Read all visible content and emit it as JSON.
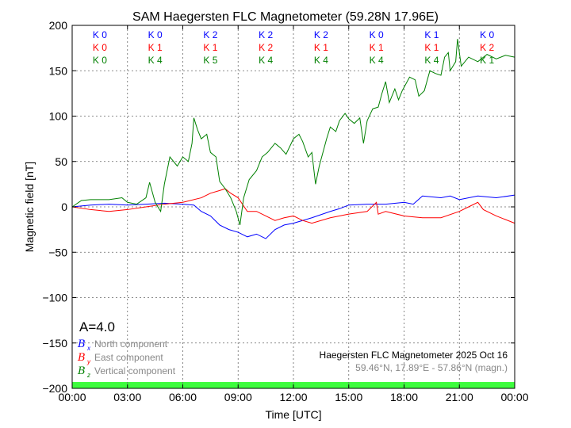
{
  "chart_data": {
    "type": "line",
    "title": "SAM Haegersten FLC Magnetometer (59.28N 17.96E)",
    "xlabel": "Time [UTC]",
    "ylabel": "Magnetic field [nT]",
    "xlim": [
      0,
      24
    ],
    "ylim": [
      -200,
      200
    ],
    "grid": true,
    "xtick_labels": [
      "00:00",
      "03:00",
      "06:00",
      "09:00",
      "12:00",
      "15:00",
      "18:00",
      "21:00",
      "00:00"
    ],
    "ytick_values": [
      200,
      150,
      100,
      50,
      0,
      -50,
      -100,
      -150,
      -200
    ],
    "ytick_labels": [
      "200",
      "150",
      "100",
      "50",
      "0",
      "−50",
      "−100",
      "−150",
      "−200"
    ],
    "k_indices": {
      "north": [
        "K 0",
        "K 0",
        "K 2",
        "K 2",
        "K 2",
        "K 0",
        "K 1",
        "K 0"
      ],
      "east": [
        "K 0",
        "K 1",
        "K 1",
        "K 2",
        "K 1",
        "K 1",
        "K 1",
        "K 2"
      ],
      "vertical": [
        "K 0",
        "K 4",
        "K 5",
        "K 4",
        "K 4",
        "K 4",
        "K 4",
        "K 1"
      ]
    },
    "a_index": "A=4.0",
    "legend": {
      "position": "bottom-left",
      "entries": [
        {
          "symbol": "B",
          "sub": "x",
          "label": "North component",
          "color": "#0000ff"
        },
        {
          "symbol": "B",
          "sub": "y",
          "label": "East component",
          "color": "#ff0000"
        },
        {
          "symbol": "B",
          "sub": "z",
          "label": "Vertical component",
          "color": "#008000"
        }
      ]
    },
    "annotation": {
      "line1": "Haegersten FLC Magnetometer 2025 Oct 16",
      "line2": "59.46°N, 17.89°E - 57.86°N (magn.)"
    },
    "series": [
      {
        "name": "North component",
        "color": "#0000ff",
        "x": [
          0,
          1,
          2,
          3,
          4,
          5,
          6,
          6.6,
          7,
          7.5,
          8,
          8.5,
          9,
          9.5,
          10,
          10.5,
          11,
          11.5,
          12,
          13,
          14,
          14.5,
          15,
          16,
          17,
          18,
          18.5,
          19,
          20,
          20.5,
          21,
          22,
          23,
          24
        ],
        "y": [
          0,
          2,
          3,
          2,
          3,
          4,
          3,
          2,
          -5,
          -10,
          -20,
          -25,
          -28,
          -33,
          -30,
          -35,
          -25,
          -20,
          -18,
          -12,
          -5,
          -2,
          2,
          3,
          3,
          5,
          3,
          12,
          10,
          12,
          8,
          12,
          10,
          13
        ]
      },
      {
        "name": "East component",
        "color": "#ff0000",
        "x": [
          0,
          1,
          2,
          3,
          4,
          5,
          6,
          7,
          7.5,
          8,
          8.3,
          8.6,
          9,
          9.5,
          10,
          10.5,
          11,
          11.5,
          12,
          12.5,
          13,
          14,
          15,
          16,
          16.5,
          16.6,
          17,
          18,
          19,
          20,
          21,
          21.5,
          22,
          22.3,
          23,
          24
        ],
        "y": [
          0,
          -3,
          -5,
          -3,
          0,
          3,
          5,
          10,
          15,
          18,
          20,
          15,
          10,
          -5,
          -5,
          -10,
          -15,
          -12,
          -10,
          -15,
          -18,
          -12,
          -8,
          -5,
          5,
          -8,
          -5,
          -10,
          -12,
          -12,
          -5,
          0,
          5,
          -3,
          -10,
          -18
        ]
      },
      {
        "name": "Vertical component",
        "color": "#008000",
        "x": [
          0,
          0.5,
          1,
          2,
          2.7,
          3,
          3.5,
          4,
          4.2,
          4.5,
          4.8,
          5,
          5.3,
          5.7,
          6,
          6.3,
          6.5,
          6.6,
          6.8,
          7,
          7.3,
          7.5,
          7.8,
          8,
          8.3,
          8.6,
          8.9,
          9.1,
          9.3,
          9.6,
          10,
          10.3,
          10.6,
          11,
          11.3,
          11.6,
          12,
          12.3,
          12.5,
          12.8,
          13,
          13.2,
          13.4,
          13.8,
          14,
          14.3,
          14.5,
          14.8,
          15,
          15.3,
          15.6,
          15.8,
          16,
          16.3,
          16.6,
          16.8,
          17,
          17.2,
          17.5,
          17.7,
          17.9,
          18.3,
          18.6,
          18.8,
          19.1,
          19.4,
          19.7,
          20,
          20.2,
          20.4,
          20.5,
          20.8,
          20.9,
          21.1,
          21.5,
          22,
          22.5,
          23,
          23.5,
          24
        ],
        "y": [
          0,
          7,
          8,
          8,
          10,
          5,
          3,
          10,
          27,
          5,
          -5,
          25,
          55,
          45,
          55,
          50,
          70,
          98,
          85,
          75,
          80,
          60,
          55,
          28,
          20,
          10,
          -5,
          -20,
          10,
          30,
          40,
          55,
          60,
          70,
          65,
          58,
          75,
          80,
          72,
          55,
          60,
          25,
          45,
          75,
          88,
          83,
          95,
          103,
          97,
          92,
          98,
          70,
          95,
          108,
          110,
          125,
          138,
          115,
          130,
          118,
          128,
          143,
          140,
          122,
          128,
          150,
          147,
          145,
          165,
          170,
          150,
          160,
          185,
          155,
          165,
          160,
          168,
          163,
          167,
          165
        ]
      }
    ]
  }
}
